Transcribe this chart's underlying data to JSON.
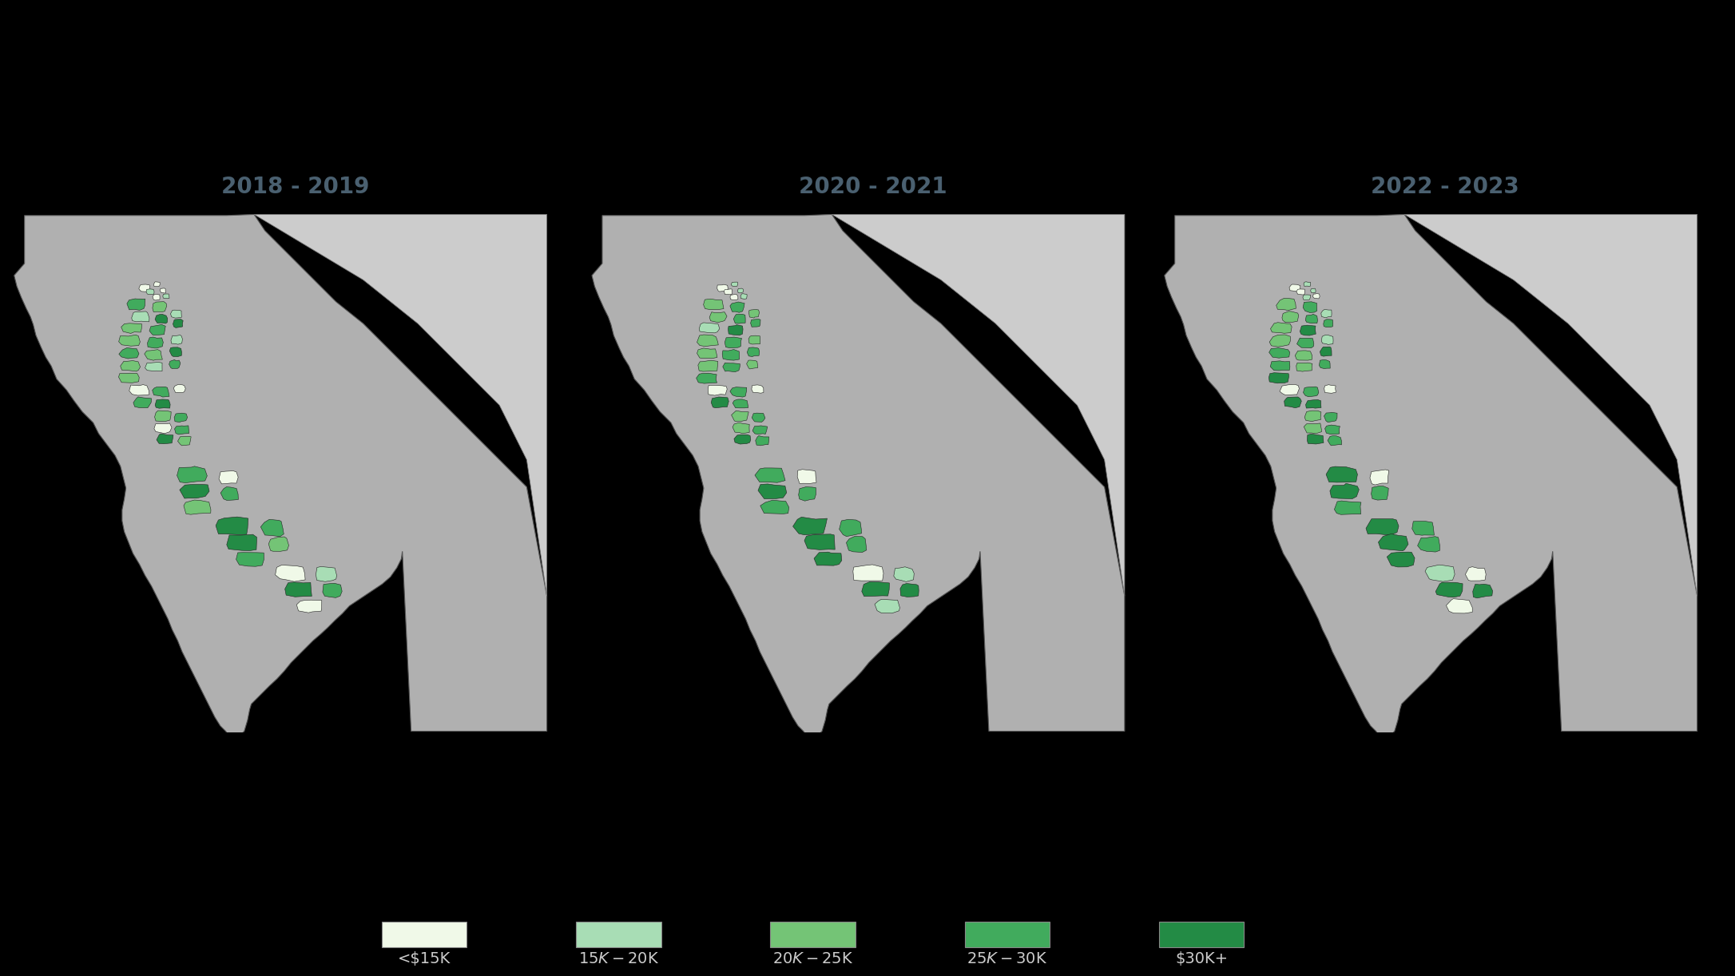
{
  "title_panels": [
    "2018 - 2019",
    "2020 - 2021",
    "2022 - 2023"
  ],
  "background_color": "#000000",
  "panel_bg_color": "#aaaaaa",
  "state_fill_color": "#b0b0b0",
  "nevada_fill_color": "#cccccc",
  "legend_labels": [
    "<$15K",
    "$15K-$20K",
    "$20K-$25K",
    "$25K-$30K",
    "$30K+"
  ],
  "legend_colors": [
    "#f0f9e8",
    "#a8ddb5",
    "#74c476",
    "#41ab5d",
    "#238b45"
  ],
  "title_color": "#4a6070",
  "title_fontsize": 20,
  "legend_fontsize": 14,
  "figsize": [
    21.72,
    12.22
  ],
  "dpi": 100
}
